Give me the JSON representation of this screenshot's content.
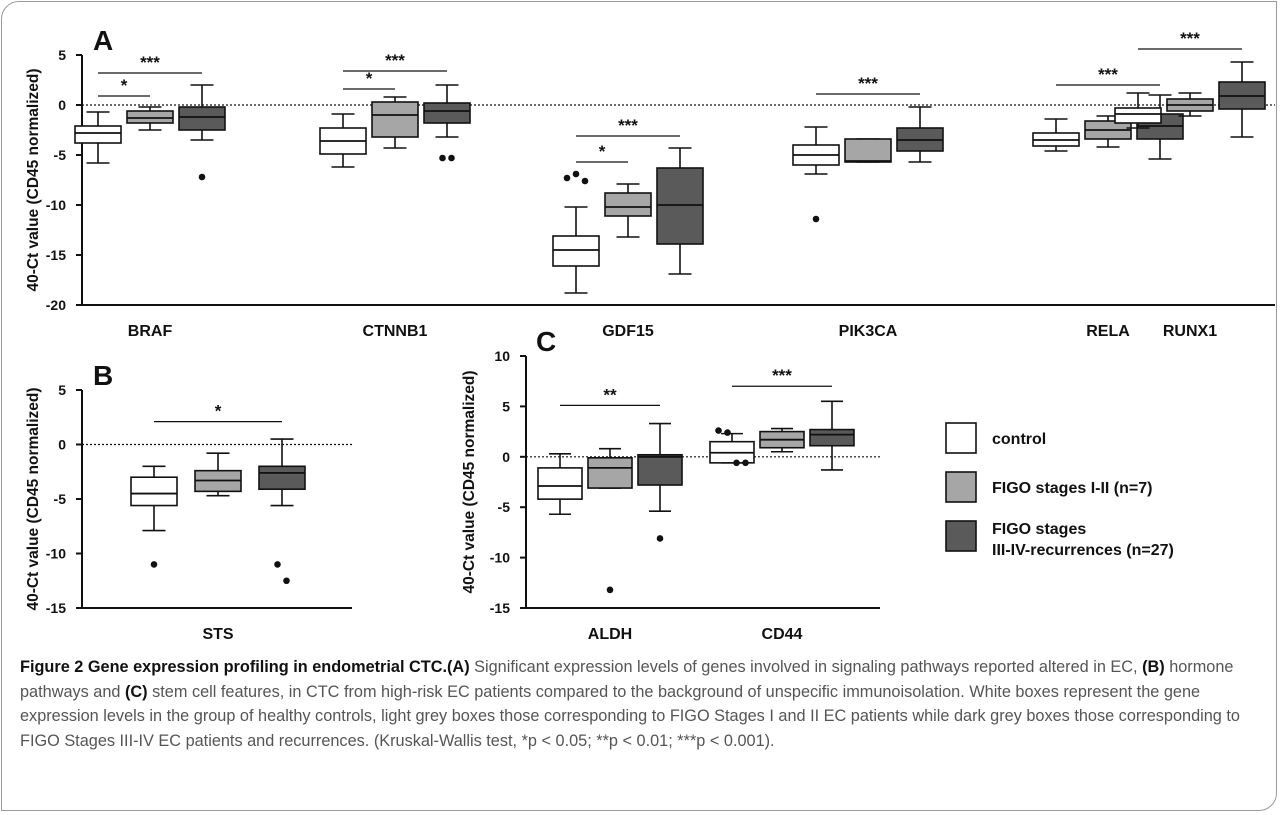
{
  "chart_data": [
    {
      "panel": "A",
      "type": "box",
      "ylabel": "40-Ct value (CD45 normalized)",
      "ylim": [
        -20,
        5
      ],
      "yticks": [
        5,
        0,
        -5,
        -10,
        -15,
        -20
      ],
      "yticklabels": [
        "5",
        "0",
        "-5",
        "-10",
        "-15",
        "-20"
      ],
      "reference_line_y": 0,
      "categories": [
        "BRAF",
        "CTNNB1",
        "GDF15",
        "PIK3CA",
        "RELA",
        "RUNX1"
      ],
      "groups": [
        {
          "category": "BRAF",
          "boxes": [
            {
              "min": -5.8,
              "q1": -3.8,
              "median": -2.8,
              "q3": -2.1,
              "max": -0.7,
              "outliers": []
            },
            {
              "min": -2.5,
              "q1": -1.8,
              "median": -1.3,
              "q3": -0.6,
              "max": -0.2,
              "outliers": []
            },
            {
              "min": -3.5,
              "q1": -2.5,
              "median": -1.2,
              "q3": -0.2,
              "max": 2.0,
              "outliers": [
                -7.2
              ]
            }
          ],
          "sig": [
            {
              "from": 0,
              "to": 1,
              "label": "*",
              "y": 0.9
            },
            {
              "from": 0,
              "to": 2,
              "label": "***",
              "y": 3.2
            }
          ]
        },
        {
          "category": "CTNNB1",
          "boxes": [
            {
              "min": -6.2,
              "q1": -4.9,
              "median": -3.6,
              "q3": -2.3,
              "max": -0.9,
              "outliers": []
            },
            {
              "min": -4.3,
              "q1": -3.2,
              "median": -1.0,
              "q3": 0.3,
              "max": 0.8,
              "outliers": []
            },
            {
              "min": -3.2,
              "q1": -1.8,
              "median": -0.6,
              "q3": 0.2,
              "max": 2.0,
              "outliers": [
                -5.3,
                -5.3
              ]
            }
          ],
          "sig": [
            {
              "from": 0,
              "to": 1,
              "label": "*",
              "y": 1.6
            },
            {
              "from": 0,
              "to": 2,
              "label": "***",
              "y": 3.4
            }
          ]
        },
        {
          "category": "GDF15",
          "boxes": [
            {
              "min": -18.8,
              "q1": -16.1,
              "median": -14.5,
              "q3": -13.1,
              "max": -10.2,
              "outliers": [
                -7.3,
                -6.9,
                -7.6
              ]
            },
            {
              "min": -13.2,
              "q1": -11.1,
              "median": -10.2,
              "q3": -8.8,
              "max": -7.9,
              "outliers": []
            },
            {
              "min": -16.9,
              "q1": -13.9,
              "median": -10.0,
              "q3": -6.3,
              "max": -4.3,
              "outliers": []
            }
          ],
          "sig": [
            {
              "from": 0,
              "to": 1,
              "label": "*",
              "y": -5.7
            },
            {
              "from": 0,
              "to": 2,
              "label": "***",
              "y": -3.1
            }
          ]
        },
        {
          "category": "PIK3CA",
          "boxes": [
            {
              "min": -6.9,
              "q1": -6.0,
              "median": -5.0,
              "q3": -4.0,
              "max": -2.2,
              "outliers": [
                -11.4
              ]
            },
            {
              "min": -5.7,
              "q1": -5.7,
              "median": -5.6,
              "q3": -3.4,
              "max": -3.4,
              "outliers": []
            },
            {
              "min": -5.7,
              "q1": -4.6,
              "median": -3.5,
              "q3": -2.3,
              "max": -0.2,
              "outliers": []
            }
          ],
          "sig": [
            {
              "from": 0,
              "to": 2,
              "label": "***",
              "y": 1.1
            }
          ]
        },
        {
          "category": "RELA",
          "boxes": [
            {
              "min": -4.6,
              "q1": -4.1,
              "median": -3.5,
              "q3": -2.8,
              "max": -1.4,
              "outliers": []
            },
            {
              "min": -4.2,
              "q1": -3.4,
              "median": -2.5,
              "q3": -1.6,
              "max": -1.1,
              "outliers": []
            },
            {
              "min": -5.4,
              "q1": -3.4,
              "median": -2.1,
              "q3": -0.9,
              "max": 1.0,
              "outliers": []
            }
          ],
          "sig": [
            {
              "from": 0,
              "to": 2,
              "label": "***",
              "y": 2.0
            }
          ]
        },
        {
          "category": "RUNX1",
          "boxes": [
            {
              "min": -2.3,
              "q1": -1.8,
              "median": -0.9,
              "q3": -0.3,
              "max": 1.2,
              "outliers": []
            },
            {
              "min": -1.1,
              "q1": -0.6,
              "median": 0.0,
              "q3": 0.6,
              "max": 1.2,
              "outliers": []
            },
            {
              "min": -3.2,
              "q1": -0.4,
              "median": 0.9,
              "q3": 2.3,
              "max": 4.3,
              "outliers": []
            }
          ],
          "sig": [
            {
              "from": 0,
              "to": 2,
              "label": "***",
              "y": 5.6
            }
          ]
        }
      ]
    },
    {
      "panel": "B",
      "type": "box",
      "ylabel": "40-Ct value (CD45 normalized)",
      "ylim": [
        -15,
        5
      ],
      "yticks": [
        5,
        0,
        -5,
        -10,
        -15
      ],
      "yticklabels": [
        "5",
        "0",
        "-5",
        "-10",
        "-15"
      ],
      "reference_line_y": 0,
      "categories": [
        "STS"
      ],
      "groups": [
        {
          "category": "STS",
          "boxes": [
            {
              "min": -7.9,
              "q1": -5.6,
              "median": -4.5,
              "q3": -3.0,
              "max": -2.0,
              "outliers": [
                -11.0
              ]
            },
            {
              "min": -4.7,
              "q1": -4.3,
              "median": -3.3,
              "q3": -2.4,
              "max": -0.8,
              "outliers": []
            },
            {
              "min": -5.6,
              "q1": -4.1,
              "median": -2.6,
              "q3": -2.0,
              "max": 0.5,
              "outliers": [
                -11.0,
                -12.5
              ]
            }
          ],
          "sig": [
            {
              "from": 0,
              "to": 2,
              "label": "*",
              "y": 2.1
            }
          ]
        }
      ]
    },
    {
      "panel": "C",
      "type": "box",
      "ylabel": "40-Ct value (CD45 normalized)",
      "ylim": [
        -15,
        10
      ],
      "yticks": [
        10,
        5,
        0,
        -5,
        -10,
        -15
      ],
      "yticklabels": [
        "10",
        "5",
        "0",
        "-5",
        "-10",
        "-15"
      ],
      "reference_line_y": 0,
      "categories": [
        "ALDH",
        "CD44"
      ],
      "groups": [
        {
          "category": "ALDH",
          "boxes": [
            {
              "min": -5.7,
              "q1": -4.2,
              "median": -2.9,
              "q3": -1.1,
              "max": 0.3,
              "outliers": []
            },
            {
              "min": -3.1,
              "q1": -3.1,
              "median": -1.1,
              "q3": -0.1,
              "max": 0.8,
              "outliers": [
                -13.2
              ]
            },
            {
              "min": -5.4,
              "q1": -2.8,
              "median": 0.0,
              "q3": 0.2,
              "max": 3.3,
              "outliers": [
                -8.1
              ]
            }
          ],
          "sig": [
            {
              "from": 0,
              "to": 2,
              "label": "**",
              "y": 5.1
            }
          ]
        },
        {
          "category": "CD44",
          "boxes": [
            {
              "min": -0.6,
              "q1": -0.6,
              "median": 0.4,
              "q3": 1.5,
              "max": 2.3,
              "outliers": [
                2.6,
                2.4,
                -0.6,
                -0.6
              ]
            },
            {
              "min": 0.5,
              "q1": 0.9,
              "median": 1.7,
              "q3": 2.5,
              "max": 2.8,
              "outliers": []
            },
            {
              "min": -1.3,
              "q1": 1.1,
              "median": 2.2,
              "q3": 2.7,
              "max": 5.5,
              "outliers": []
            }
          ],
          "sig": [
            {
              "from": 0,
              "to": 2,
              "label": "***",
              "y": 7.0
            }
          ]
        }
      ]
    }
  ],
  "legend": {
    "placement": "right",
    "entries": [
      {
        "label": "control",
        "lines": [
          "control"
        ],
        "color": "#ffffff"
      },
      {
        "label": "FIGO stages I-II (n=7)",
        "lines": [
          "FIGO stages I-II (n=7)"
        ],
        "color": "#a6a6a6"
      },
      {
        "label": "FIGO stages III-IV-recurrences (n=27)",
        "lines": [
          "FIGO stages",
          "III-IV-recurrences (n=27)"
        ],
        "color": "#5a5a5a"
      }
    ]
  },
  "caption": {
    "title": "Figure 2 Gene expression profiling in endometrial CTC.",
    "label_a": "(A)",
    "text_a": " Significant expression levels of genes involved in signaling pathways reported altered in EC, ",
    "label_b": "(B)",
    "text_b": " hormone pathways and ",
    "label_c": "(C)",
    "text_c": " stem cell features, in CTC from high-risk EC patients compared to the background of unspecific immunoisolation. White boxes represent the gene expression levels in the group of healthy controls, light grey boxes those corresponding to FIGO Stages I and II EC patients while dark grey boxes those corresponding to FIGO Stages III-IV EC patients and recurrences. (Kruskal-Wallis test, *p < 0.05; **p < 0.01; ***p < 0.001)."
  }
}
